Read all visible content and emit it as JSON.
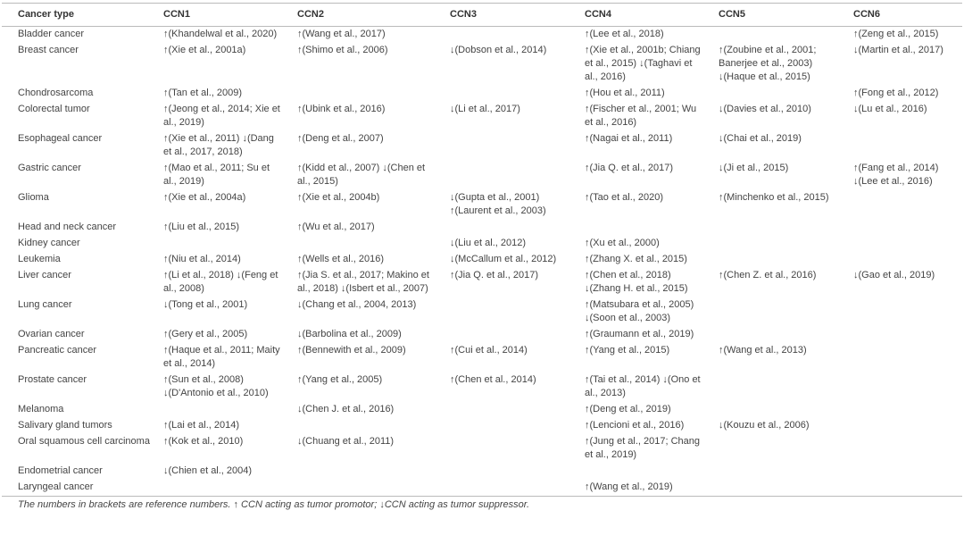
{
  "table": {
    "header": [
      "Cancer type",
      "CCN1",
      "CCN2",
      "CCN3",
      "CCN4",
      "CCN5",
      "CCN6"
    ],
    "rows": [
      [
        "Bladder cancer",
        "↑(Khandelwal et al., 2020)",
        "↑(Wang et al., 2017)",
        null,
        "↑(Lee et al., 2018)",
        null,
        "↑(Zeng et al., 2015)"
      ],
      [
        "Breast cancer",
        "↑(Xie et al., 2001a)",
        "↑(Shimo et al., 2006)",
        "↓(Dobson et al., 2014)",
        "↑(Xie et al., 2001b; Chiang et al., 2015) ↓(Taghavi et al., 2016)",
        "↑(Zoubine et al., 2001; Banerjee et al., 2003) ↓(Haque et al., 2015)",
        "↓(Martin et al., 2017)"
      ],
      [
        "Chondrosarcoma",
        "↑(Tan et al., 2009)",
        null,
        null,
        "↑(Hou et al., 2011)",
        null,
        "↑(Fong et al., 2012)"
      ],
      [
        "Colorectal tumor",
        "↑(Jeong et al., 2014; Xie et al., 2019)",
        "↑(Ubink et al., 2016)",
        "↓(Li et al., 2017)",
        "↑(Fischer et al., 2001; Wu et al., 2016)",
        "↓(Davies et al., 2010)",
        "↓(Lu et al., 2016)"
      ],
      [
        "Esophageal cancer",
        "↑(Xie et al., 2011) ↓(Dang et al., 2017, 2018)",
        "↑(Deng et al., 2007)",
        null,
        "↑(Nagai et al., 2011)",
        "↓(Chai et al., 2019)",
        null
      ],
      [
        "Gastric cancer",
        "↑(Mao et al., 2011; Su et al., 2019)",
        "↑(Kidd et al., 2007) ↓(Chen et al., 2015)",
        null,
        "↑(Jia Q. et al., 2017)",
        "↓(Ji et al., 2015)",
        "↑(Fang et al., 2014) ↓(Lee et al., 2016)"
      ],
      [
        "Glioma",
        "↑(Xie et al., 2004a)",
        "↑(Xie et al., 2004b)",
        "↓(Gupta et al., 2001) ↑(Laurent et al., 2003)",
        "↑(Tao et al., 2020)",
        "↑(Minchenko et al., 2015)",
        null
      ],
      [
        "Head and neck cancer",
        "↑(Liu et al., 2015)",
        "↑(Wu et al., 2017)",
        null,
        null,
        null,
        null
      ],
      [
        "Kidney cancer",
        null,
        null,
        "↓(Liu et al., 2012)",
        "↑(Xu et al., 2000)",
        null,
        null
      ],
      [
        "Leukemia",
        "↑(Niu et al., 2014)",
        "↑(Wells et al., 2016)",
        "↓(McCallum et al., 2012)",
        "↑(Zhang X. et al., 2015)",
        null,
        null
      ],
      [
        "Liver cancer",
        "↑(Li et al., 2018) ↓(Feng et al., 2008)",
        "↑(Jia S. et al., 2017; Makino et al., 2018) ↓(Isbert et al., 2007)",
        "↑(Jia Q. et al., 2017)",
        "↑(Chen et al., 2018) ↓(Zhang H. et al., 2015)",
        "↑(Chen Z. et al., 2016)",
        "↓(Gao et al., 2019)"
      ],
      [
        "Lung cancer",
        "↓(Tong et al., 2001)",
        "↓(Chang et al., 2004, 2013)",
        null,
        "↑(Matsubara et al., 2005) ↓(Soon et al., 2003)",
        null,
        null
      ],
      [
        "Ovarian cancer",
        "↑(Gery et al., 2005)",
        "↓(Barbolina et al., 2009)",
        null,
        "↑(Graumann et al., 2019)",
        null,
        null
      ],
      [
        "Pancreatic cancer",
        "↑(Haque et al., 2011; Maity et al., 2014)",
        "↑(Bennewith et al., 2009)",
        "↑(Cui et al., 2014)",
        "↑(Yang et al., 2015)",
        "↑(Wang et al., 2013)",
        null
      ],
      [
        "Prostate cancer",
        "↑(Sun et al., 2008) ↓(D'Antonio et al., 2010)",
        "↑(Yang et al., 2005)",
        "↑(Chen et al., 2014)",
        "↑(Tai et al., 2014) ↓(Ono et al., 2013)",
        null,
        null
      ],
      [
        "Melanoma",
        null,
        "↓(Chen J. et al., 2016)",
        null,
        "↑(Deng et al., 2019)",
        null,
        null
      ],
      [
        "Salivary gland tumors",
        "↑(Lai et al., 2014)",
        null,
        null,
        "↑(Lencioni et al., 2016)",
        "↓(Kouzu et al., 2006)",
        null
      ],
      [
        "Oral squamous cell carcinoma",
        "↑(Kok et al., 2010)",
        "↓(Chuang et al., 2011)",
        null,
        "↑(Jung et al., 2017; Chang et al., 2019)",
        null,
        null
      ],
      [
        "Endometrial cancer",
        "↓(Chien et al., 2004)",
        null,
        null,
        null,
        null,
        null
      ],
      [
        "Laryngeal cancer",
        null,
        null,
        null,
        "↑(Wang et al., 2019)",
        null,
        null
      ]
    ],
    "footnote": "The numbers in brackets are reference numbers. ↑ CCN acting as tumor promotor; ↓CCN acting as tumor suppressor."
  }
}
